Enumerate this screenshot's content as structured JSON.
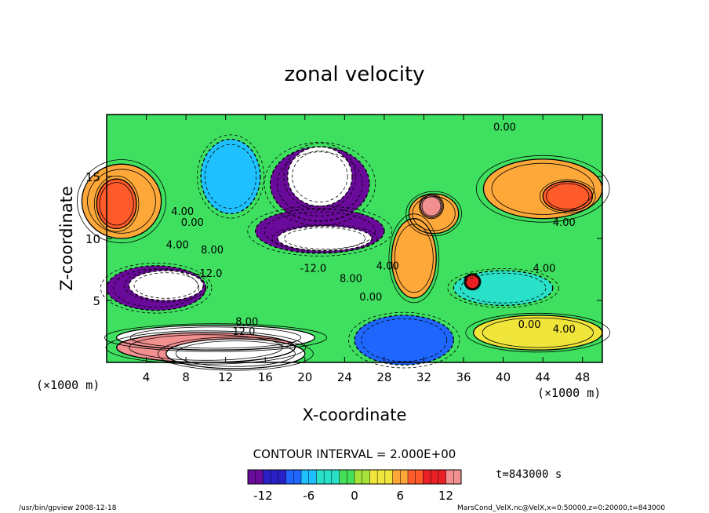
{
  "chart_data": {
    "type": "heatmap",
    "title": "zonal velocity",
    "xlabel": "X-coordinate",
    "ylabel": "Z-coordinate",
    "x_unit": "(×1000 m)",
    "y_unit": "(×1000 m)",
    "xlim": [
      0,
      50
    ],
    "ylim": [
      0,
      20
    ],
    "x_ticks": [
      "4",
      "8",
      "12",
      "16",
      "20",
      "24",
      "28",
      "32",
      "36",
      "40",
      "44",
      "48"
    ],
    "y_ticks": [
      "5",
      "10",
      "15"
    ],
    "contour_interval_text": "CONTOUR INTERVAL = 2.000E+00",
    "time_text": "t=843000 s",
    "colorbar": {
      "range": [
        -14,
        14
      ],
      "tick_labels": [
        "-12",
        "-6",
        "0",
        "6",
        "12"
      ],
      "colors": [
        "#6a0a9a",
        "#2a20c8",
        "#1f66ff",
        "#1ec0ff",
        "#29e0c8",
        "#45e05a",
        "#a6e33a",
        "#f0e53a",
        "#ffa83a",
        "#ff5a2a",
        "#ea1f24",
        "#f29090"
      ]
    },
    "blobs": [
      {
        "v": -13,
        "cx": 0.43,
        "cy": 0.28,
        "rx": 0.1,
        "ry": 0.15
      },
      {
        "v": -15,
        "cx": 0.43,
        "cy": 0.25,
        "rx": 0.065,
        "ry": 0.12
      },
      {
        "v": -13,
        "cx": 0.43,
        "cy": 0.47,
        "rx": 0.13,
        "ry": 0.09
      },
      {
        "v": -15,
        "cx": 0.44,
        "cy": 0.5,
        "rx": 0.095,
        "ry": 0.05
      },
      {
        "v": -12,
        "cx": 0.1,
        "cy": 0.7,
        "rx": 0.1,
        "ry": 0.09
      },
      {
        "v": -15,
        "cx": 0.12,
        "cy": 0.69,
        "rx": 0.075,
        "ry": 0.06
      },
      {
        "v": -8,
        "cx": 0.6,
        "cy": 0.91,
        "rx": 0.1,
        "ry": 0.1
      },
      {
        "v": -4,
        "cx": 0.8,
        "cy": 0.7,
        "rx": 0.1,
        "ry": 0.07
      },
      {
        "v": -7,
        "cx": 0.25,
        "cy": 0.25,
        "rx": 0.06,
        "ry": 0.15
      },
      {
        "v": 5,
        "cx": 0.03,
        "cy": 0.35,
        "rx": 0.08,
        "ry": 0.15
      },
      {
        "v": 8,
        "cx": 0.02,
        "cy": 0.36,
        "rx": 0.04,
        "ry": 0.1
      },
      {
        "v": 6,
        "cx": 0.66,
        "cy": 0.4,
        "rx": 0.05,
        "ry": 0.08
      },
      {
        "v": 5,
        "cx": 0.62,
        "cy": 0.58,
        "rx": 0.045,
        "ry": 0.16
      },
      {
        "v": 13,
        "cx": 0.655,
        "cy": 0.37,
        "rx": 0.022,
        "ry": 0.045
      },
      {
        "v": 10,
        "cx": 0.738,
        "cy": 0.675,
        "rx": 0.015,
        "ry": 0.03
      },
      {
        "v": 5,
        "cx": 0.88,
        "cy": 0.3,
        "rx": 0.12,
        "ry": 0.12
      },
      {
        "v": 7,
        "cx": 0.93,
        "cy": 0.33,
        "rx": 0.05,
        "ry": 0.06
      },
      {
        "v": 3,
        "cx": 0.87,
        "cy": 0.88,
        "rx": 0.13,
        "ry": 0.07
      },
      {
        "v": 14,
        "cx": 0.22,
        "cy": 0.9,
        "rx": 0.2,
        "ry": 0.05
      },
      {
        "v": 12,
        "cx": 0.2,
        "cy": 0.94,
        "rx": 0.18,
        "ry": 0.06
      },
      {
        "v": 15,
        "cx": 0.26,
        "cy": 0.965,
        "rx": 0.14,
        "ry": 0.06
      }
    ],
    "contour_labels": [
      {
        "text": "0.00",
        "x": 39.0,
        "z": 18.7
      },
      {
        "text": "4.00",
        "x": 6.5,
        "z": 11.9
      },
      {
        "text": "0.00",
        "x": 7.5,
        "z": 11.0
      },
      {
        "text": "4.00",
        "x": 6.0,
        "z": 9.2
      },
      {
        "text": "8.00",
        "x": 9.5,
        "z": 8.8
      },
      {
        "text": "-12.0",
        "x": 9.0,
        "z": 6.9
      },
      {
        "text": "-12.0",
        "x": 19.5,
        "z": 7.3
      },
      {
        "text": "8.00",
        "x": 23.5,
        "z": 6.5
      },
      {
        "text": "0.00",
        "x": 25.5,
        "z": 5.0
      },
      {
        "text": "4.00",
        "x": 27.2,
        "z": 7.5
      },
      {
        "text": "8.00",
        "x": 13.0,
        "z": 3.0
      },
      {
        "text": "12.0",
        "x": 12.7,
        "z": 2.2
      },
      {
        "text": "4.00",
        "x": 43.0,
        "z": 7.3
      },
      {
        "text": "4.00",
        "x": 45.0,
        "z": 11.0
      },
      {
        "text": "0.00",
        "x": 41.5,
        "z": 2.8
      },
      {
        "text": "4.00",
        "x": 45.0,
        "z": 2.4
      }
    ],
    "grid": false
  },
  "footer": {
    "left": "/usr/bin/gpview   2008-12-18",
    "right": "MarsCond_VelX.nc@VelX,x=0:50000,z=0:20000,t=843000"
  }
}
